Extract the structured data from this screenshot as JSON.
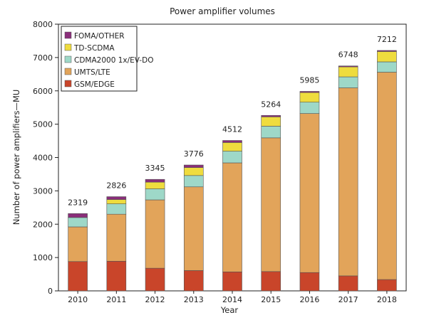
{
  "chart_data": {
    "type": "bar",
    "stacked": true,
    "title": "Power amplifier volumes",
    "xlabel": "Year",
    "ylabel": "Number of power amplifiers—MU",
    "ylim": [
      0,
      8000
    ],
    "yticks": [
      0,
      1000,
      2000,
      3000,
      4000,
      5000,
      6000,
      7000,
      8000
    ],
    "grid": false,
    "legend_position": "top-left",
    "categories": [
      "2010",
      "2011",
      "2012",
      "2013",
      "2014",
      "2015",
      "2016",
      "2017",
      "2018"
    ],
    "series": [
      {
        "name": "GSM/EDGE",
        "color": "#c9452a",
        "values": [
          880,
          890,
          680,
          610,
          570,
          580,
          550,
          450,
          340
        ]
      },
      {
        "name": "UMTS/LTE",
        "color": "#e2a45a",
        "values": [
          1040,
          1410,
          2050,
          2510,
          3270,
          4010,
          4770,
          5640,
          6220
        ]
      },
      {
        "name": "CDMA2000 1x/EV-DO",
        "color": "#9ed8c8",
        "values": [
          280,
          310,
          330,
          340,
          350,
          350,
          340,
          330,
          310
        ]
      },
      {
        "name": "TD-SCDMA",
        "color": "#efdc3e",
        "values": [
          0,
          130,
          200,
          240,
          260,
          280,
          290,
          300,
          310
        ]
      },
      {
        "name": "FOMA/OTHER",
        "color": "#8a2e7a",
        "values": [
          119,
          86,
          85,
          76,
          62,
          44,
          35,
          28,
          32
        ]
      }
    ],
    "totals": [
      "2319",
      "2826",
      "3345",
      "3776",
      "4512",
      "5264",
      "5985",
      "6748",
      "7212"
    ],
    "legend_order": [
      "FOMA/OTHER",
      "TD-SCDMA",
      "CDMA2000 1x/EV-DO",
      "UMTS/LTE",
      "GSM/EDGE"
    ]
  }
}
